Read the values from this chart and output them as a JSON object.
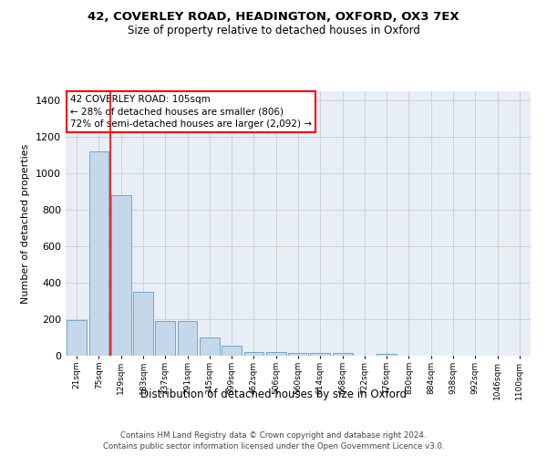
{
  "title1": "42, COVERLEY ROAD, HEADINGTON, OXFORD, OX3 7EX",
  "title2": "Size of property relative to detached houses in Oxford",
  "xlabel": "Distribution of detached houses by size in Oxford",
  "ylabel": "Number of detached properties",
  "categories": [
    "21sqm",
    "75sqm",
    "129sqm",
    "183sqm",
    "237sqm",
    "291sqm",
    "345sqm",
    "399sqm",
    "452sqm",
    "506sqm",
    "560sqm",
    "614sqm",
    "668sqm",
    "722sqm",
    "776sqm",
    "830sqm",
    "884sqm",
    "938sqm",
    "992sqm",
    "1046sqm",
    "1100sqm"
  ],
  "values": [
    196,
    1120,
    880,
    350,
    192,
    192,
    98,
    55,
    22,
    22,
    15,
    15,
    15,
    0,
    12,
    0,
    0,
    0,
    0,
    0,
    0
  ],
  "bar_color": "#c5d8ea",
  "bar_edge_color": "#6fa8c8",
  "grid_color": "#cccccc",
  "background_color": "#e8eef5",
  "vline_x_pos": 1.5,
  "vline_color": "red",
  "annotation_text": "42 COVERLEY ROAD: 105sqm\n← 28% of detached houses are smaller (806)\n72% of semi-detached houses are larger (2,092) →",
  "annotation_box_color": "white",
  "annotation_box_edge_color": "red",
  "ylim": [
    0,
    1450
  ],
  "yticks": [
    0,
    200,
    400,
    600,
    800,
    1000,
    1200,
    1400
  ],
  "footnote": "Contains HM Land Registry data © Crown copyright and database right 2024.\nContains public sector information licensed under the Open Government Licence v3.0."
}
